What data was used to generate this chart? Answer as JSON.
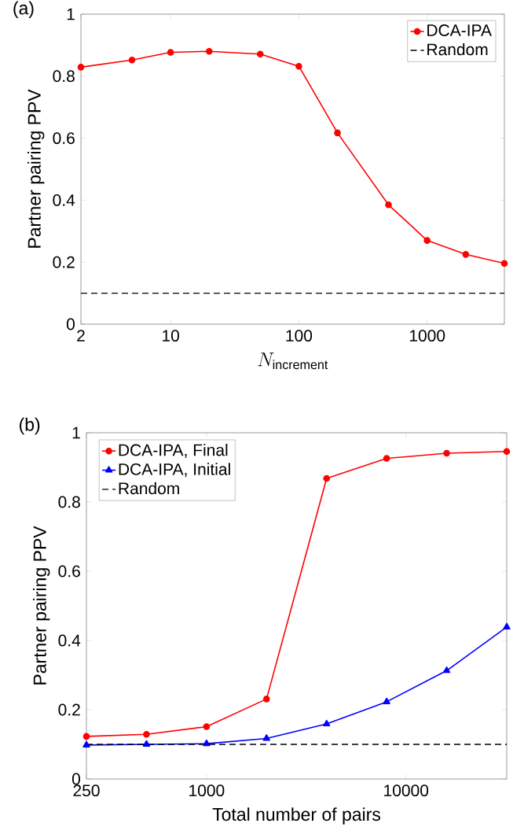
{
  "chart_data": [
    {
      "type": "line",
      "annotations": [
        "(a)"
      ],
      "xlabel": "N_{\\mathrm{increment}}",
      "ylabel": "Partner pairing PPV",
      "log": "x",
      "xlim": [
        2,
        4000
      ],
      "ylim": [
        0,
        1
      ],
      "xticks": [
        2,
        10,
        100,
        1000
      ],
      "yticks": [
        0,
        0.2,
        0.4,
        0.6,
        0.8,
        1
      ],
      "grid": false,
      "legend": "top right",
      "x": [
        2,
        5,
        10,
        20,
        50,
        100,
        200,
        500,
        1000,
        2000,
        4000
      ],
      "series": [
        {
          "name": "DCA-IPA",
          "color": "#ff0000",
          "marker": "circle",
          "line_style": "solid",
          "values": [
            0.829,
            0.852,
            0.877,
            0.88,
            0.871,
            0.832,
            0.617,
            0.385,
            0.27,
            0.225,
            0.196
          ]
        }
      ],
      "ref_lines": [
        {
          "axis": "y",
          "value": 0.1,
          "label": "Random",
          "color": "#000000",
          "line_style": "dashed"
        }
      ]
    },
    {
      "type": "line",
      "annotations": [
        "(b)"
      ],
      "xlabel": "Total number of pairs",
      "ylabel": "Partner pairing PPV",
      "log": "x",
      "xlim": [
        250,
        32000
      ],
      "ylim": [
        0,
        1
      ],
      "xticks": [
        250,
        1000,
        10000
      ],
      "yticks": [
        0,
        0.2,
        0.4,
        0.6,
        0.8,
        1
      ],
      "grid": false,
      "legend": "top left",
      "x": [
        250,
        500,
        1000,
        2000,
        4000,
        8000,
        16000,
        32000
      ],
      "series": [
        {
          "name": "DCA-IPA, Final",
          "color": "#ff0000",
          "marker": "circle",
          "line_style": "solid",
          "values": [
            0.123,
            0.129,
            0.151,
            0.231,
            0.868,
            0.926,
            0.941,
            0.946
          ]
        },
        {
          "name": "DCA-IPA, Initial",
          "color": "#0000ff",
          "marker": "triangle",
          "line_style": "solid",
          "values": [
            0.098,
            0.1,
            0.102,
            0.117,
            0.159,
            0.223,
            0.313,
            0.439
          ]
        }
      ],
      "ref_lines": [
        {
          "axis": "y",
          "value": 0.1,
          "label": "Random",
          "color": "#000000",
          "line_style": "dashed"
        }
      ]
    }
  ]
}
